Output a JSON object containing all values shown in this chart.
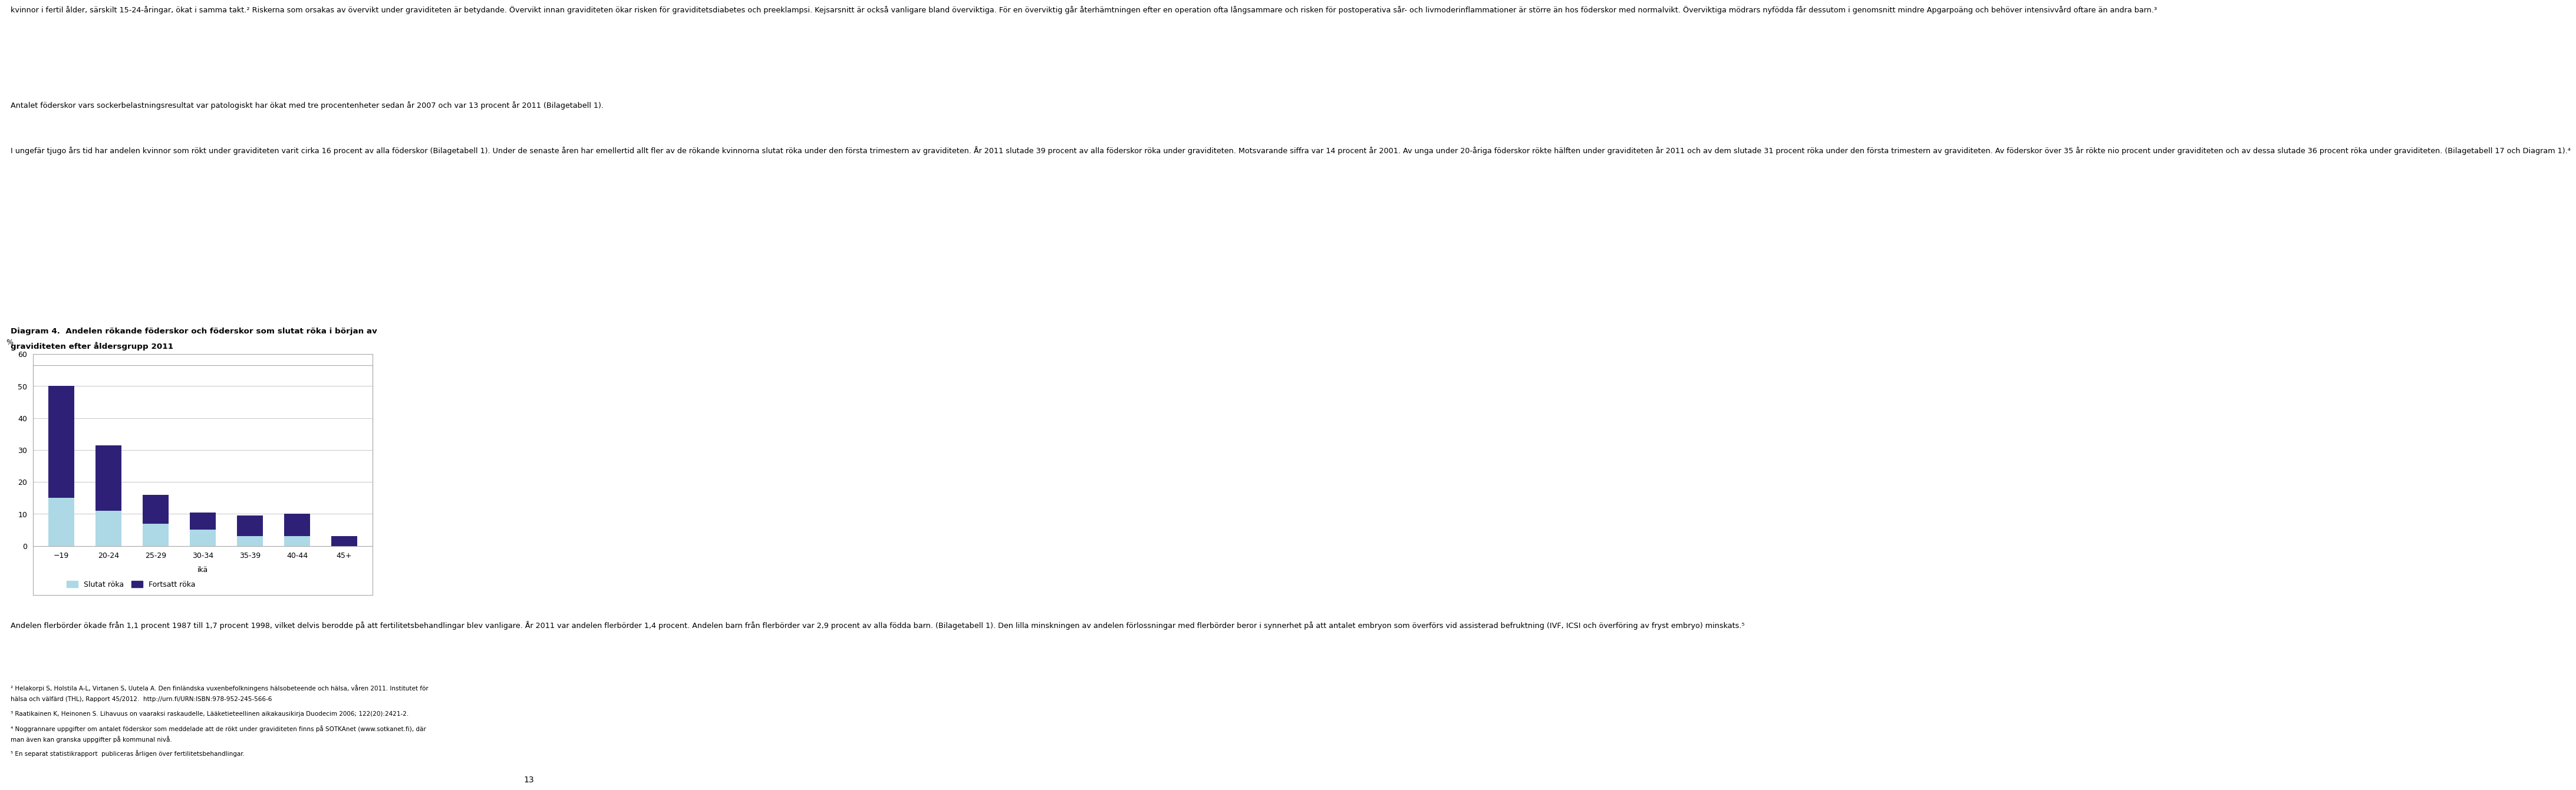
{
  "categories": [
    "−19",
    "20-24",
    "25-29",
    "30-34",
    "35-39",
    "40-44",
    "45+"
  ],
  "xlabel": "ikä",
  "ylabel": "%",
  "slutat_values": [
    15,
    11,
    7,
    5,
    3,
    3,
    0
  ],
  "fortsatt_values": [
    35,
    20.5,
    9,
    5.5,
    6.5,
    7,
    3
  ],
  "color_slutat": "#add8e6",
  "color_fortsatt": "#2e2077",
  "ylim": [
    0,
    60
  ],
  "yticks": [
    0,
    10,
    20,
    30,
    40,
    50,
    60
  ],
  "legend_slutat": "Slutat röka",
  "legend_fortsatt": "Fortsatt röka",
  "background_color": "#ffffff",
  "chart_bg": "#ffffff",
  "grid_color": "#cccccc",
  "diagram_title_line1": "Diagram 4.  Andelen rökande föderskor och föderskor som slutat röka i början av",
  "diagram_title_line2": "graviditeten efter åldersgrupp 2011",
  "top_text": "kvinnor i fertil ålder, särskilt 15-24-åringar, ökat i samma takt.² Riskerna som orsakas av övervikt under graviditeten är betydande. Övervikt innan graviditeten ökar risken för graviditetsdiabetes och preeklampsi. Kejsarsnitt är också vanligare bland överviktiga. För en överviktig går återhämtningen efter en operation ofta långsammare och risken för postoperativa sår- och livmoderinflammationer är större än hos föderskor med normalvikt. Överviktiga mödrars nyfödda får dessutom i genomsnitt mindre Apgarpoäng och behöver intensivvård oftare än andra barn.³",
  "second_text": "Antalet föderskor vars sockerbelastningsresultat var patologiskt har ökat med tre procentenheter sedan år 2007 och var 13 procent år 2011 (Bilagetabell 1).",
  "third_text": "I ungefär tjugo års tid har andelen kvinnor som rökt under graviditeten varit cirka 16 procent av alla föderskor (Bilagetabell 1). Under de senaste åren har emellertid allt fler av de rökande kvinnorna slutat röka under den första trimestern av graviditeten. År 2011 slutade 39 procent av alla föderskor röka under graviditeten. Motsvarande siffra var 14 procent år 2001. Av unga under 20-åriga föderskor rökte hälften under graviditeten år 2011 och av dem slutade 31 procent röka under den första trimestern av graviditeten. Av föderskor över 35 år rökte nio procent under graviditeten och av dessa slutade 36 procent röka under graviditeten. (Bilagetabell 17 och Diagram 1).⁴",
  "bottom_text": "Andelen flerbörder ökade från 1,1 procent 1987 till 1,7 procent 1998, vilket delvis berodde på att fertilitetsbehandlingar blev vanligare. År 2011 var andelen flerbörder 1,4 procent. Andelen barn från flerbörder var 2,9 procent av alla födda barn. (Bilagetabell 1). Den lilla minskningen av andelen förlossningar med flerbörder beror i synnerhet på att antalet embryon som överförs vid assisterad befruktning (IVF, ICSI och överföring av fryst embryo) minskats.⁵",
  "fn1": "² Helakorpi S, Holstila A-L, Virtanen S, Uutela A. Den finländska vuxenbefolkningens hälsobeteende och hälsa, våren 2011. Institutet för",
  "fn1b": "hälsa och välfärd (THL), Rapport 45/2012.  http://urn.fi/URN:ISBN:978-952-245-566-6",
  "fn2": "³ Raatikainen K, Heinonen S. Lihavuus on vaaraksi raskaudelle, Lääketieteellinen aikakausikirja Duodecim 2006; 122(20):2421-2.",
  "fn3": "⁴ Noggrannare uppgifter om antalet föderskor som meddelade att de rökt under graviditeten finns på SOTKAnet (www.sotkanet.fi), där",
  "fn3b": "man även kan granska uppgifter på kommunal nivå.",
  "fn4": "⁵ En separat statistikrapport  publiceras årligen över fertilitetsbehandlingar.",
  "page_number": "13"
}
